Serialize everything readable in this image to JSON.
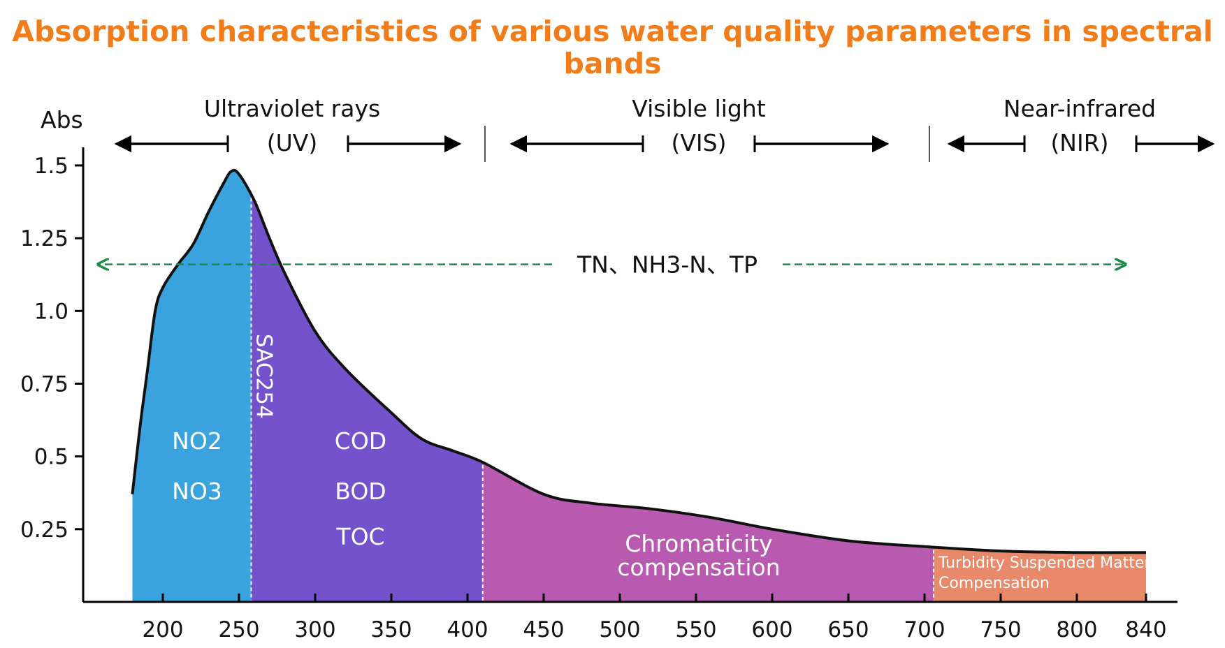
{
  "chart_data": {
    "type": "area",
    "title": "Absorption characteristics of various water quality parameters in spectral bands",
    "ylabel": "Abs",
    "xlabel": "",
    "ylim": [
      0,
      1.5
    ],
    "xlim": [
      180,
      840
    ],
    "yticks": [
      "1.5",
      "1.25",
      "1.0",
      "0.75",
      "0.5",
      "0.25"
    ],
    "ytick_values": [
      1.5,
      1.25,
      1.0,
      0.75,
      0.5,
      0.25
    ],
    "xticks": [
      "200",
      "250",
      "300",
      "350",
      "400",
      "450",
      "500",
      "550",
      "600",
      "650",
      "700",
      "750",
      "800",
      "840"
    ],
    "xtick_values": [
      200,
      250,
      300,
      350,
      400,
      450,
      500,
      550,
      600,
      650,
      700,
      750,
      800,
      840
    ],
    "curve": [
      {
        "x": 180,
        "y": 0.37
      },
      {
        "x": 185,
        "y": 0.6
      },
      {
        "x": 190,
        "y": 0.8
      },
      {
        "x": 195,
        "y": 1.0
      },
      {
        "x": 200,
        "y": 1.08
      },
      {
        "x": 210,
        "y": 1.16
      },
      {
        "x": 220,
        "y": 1.23
      },
      {
        "x": 230,
        "y": 1.34
      },
      {
        "x": 240,
        "y": 1.44
      },
      {
        "x": 245,
        "y": 1.48
      },
      {
        "x": 250,
        "y": 1.47
      },
      {
        "x": 260,
        "y": 1.38
      },
      {
        "x": 270,
        "y": 1.25
      },
      {
        "x": 280,
        "y": 1.13
      },
      {
        "x": 300,
        "y": 0.93
      },
      {
        "x": 320,
        "y": 0.8
      },
      {
        "x": 350,
        "y": 0.65
      },
      {
        "x": 370,
        "y": 0.56
      },
      {
        "x": 390,
        "y": 0.52
      },
      {
        "x": 410,
        "y": 0.48
      },
      {
        "x": 450,
        "y": 0.37
      },
      {
        "x": 480,
        "y": 0.34
      },
      {
        "x": 520,
        "y": 0.32
      },
      {
        "x": 560,
        "y": 0.29
      },
      {
        "x": 600,
        "y": 0.25
      },
      {
        "x": 650,
        "y": 0.21
      },
      {
        "x": 700,
        "y": 0.19
      },
      {
        "x": 750,
        "y": 0.175
      },
      {
        "x": 800,
        "y": 0.17
      },
      {
        "x": 840,
        "y": 0.17
      }
    ],
    "regions": [
      {
        "from": 180,
        "to": 258,
        "color": "#3aa3de",
        "labels": [
          "NO2",
          "NO3"
        ]
      },
      {
        "from": 258,
        "to": 410,
        "color": "#7452cc",
        "labels": [
          "COD",
          "BOD",
          "TOC"
        ]
      },
      {
        "from": 410,
        "to": 706,
        "color": "#b75ab0",
        "labels": [
          "Chromaticity",
          "compensation"
        ]
      },
      {
        "from": 706,
        "to": 840,
        "color": "#e8896a",
        "labels": [
          "Turbidity Suspended Matter",
          "Compensation"
        ]
      }
    ],
    "markers": [
      {
        "x": 258,
        "label": "SAC254"
      }
    ],
    "bands": [
      {
        "name": "Ultraviolet rays",
        "abbr": "(UV)"
      },
      {
        "name": "Visible light",
        "abbr": "(VIS)"
      },
      {
        "name": "Near-infrared",
        "abbr": "(NIR)"
      }
    ],
    "span_annotation": {
      "label": "TN、NH3-N、TP",
      "y": 1.16,
      "from": 185,
      "to": 820,
      "color": "#1a8a48"
    },
    "grid": false
  }
}
